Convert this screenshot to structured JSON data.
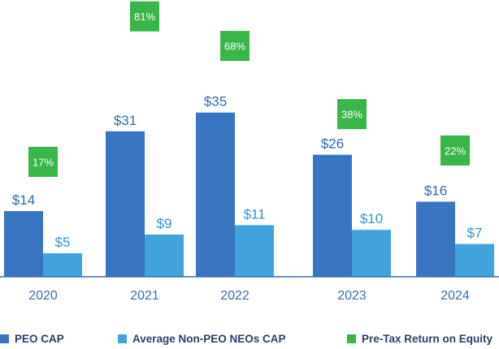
{
  "chart_data": {
    "type": "bar",
    "categories": [
      "2020",
      "2021",
      "2022",
      "2023",
      "2024"
    ],
    "series": [
      {
        "name": "PEO CAP",
        "values": [
          14,
          31,
          35,
          26,
          16
        ],
        "labels": [
          "$14",
          "$31",
          "$35",
          "$26",
          "$16"
        ],
        "color": "#3874c0"
      },
      {
        "name": "Average Non-PEO NEOs CAP",
        "values": [
          5,
          9,
          11,
          10,
          7
        ],
        "labels": [
          "$5",
          "$9",
          "$11",
          "$10",
          "$7"
        ],
        "color": "#42a2db"
      }
    ],
    "overlay": {
      "name": "Pre-Tax Return on Equity",
      "values": [
        17,
        81,
        68,
        38,
        22
      ],
      "labels": [
        "17%",
        "81%",
        "68%",
        "38%",
        "22%"
      ],
      "color": "#3ab54a"
    },
    "title": "",
    "xlabel": "",
    "ylabel": "",
    "ylim": [
      0,
      35
    ],
    "grid": false,
    "legend_position": "bottom"
  },
  "legend": {
    "items": [
      {
        "label": "PEO CAP",
        "color": "#3874c0"
      },
      {
        "label": "Average Non-PEO NEOs CAP",
        "color": "#42a2db"
      },
      {
        "label": "Pre-Tax Return on Equity",
        "color": "#3ab54a"
      }
    ]
  }
}
